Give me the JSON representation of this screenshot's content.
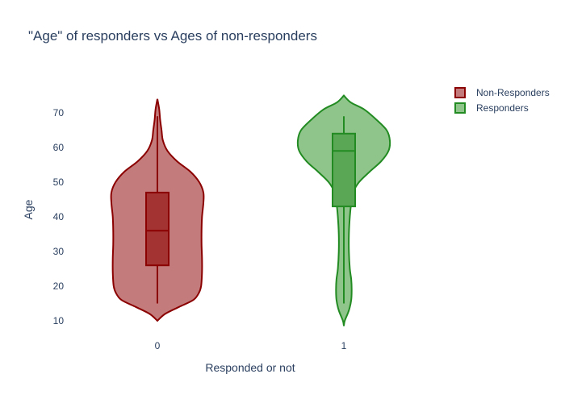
{
  "chart_data": {
    "type": "violin",
    "title": "\"Age\" of responders vs Ages of non-responders",
    "xlabel": "Responded or not",
    "ylabel": "Age",
    "categories": [
      "0",
      "1"
    ],
    "yticks": [
      10,
      20,
      30,
      40,
      50,
      60,
      70
    ],
    "ylim": [
      5,
      80
    ],
    "legend_position": "top-right",
    "series": [
      {
        "name": "Non-Responders",
        "category": "0",
        "line_color": "#8b0000",
        "fill_color": "#c47b7b",
        "box_color": "#a33333",
        "min": 10,
        "max": 74,
        "whisker_low": 15,
        "whisker_high": 69,
        "q1": 26,
        "median": 36,
        "q3": 47,
        "density": [
          {
            "age": 10,
            "w": 0.0
          },
          {
            "age": 12,
            "w": 0.17
          },
          {
            "age": 14,
            "w": 0.47
          },
          {
            "age": 16,
            "w": 0.78
          },
          {
            "age": 18,
            "w": 0.9
          },
          {
            "age": 20,
            "w": 0.95
          },
          {
            "age": 24,
            "w": 0.97
          },
          {
            "age": 28,
            "w": 0.97
          },
          {
            "age": 32,
            "w": 0.96
          },
          {
            "age": 36,
            "w": 0.96
          },
          {
            "age": 40,
            "w": 0.97
          },
          {
            "age": 44,
            "w": 1.0
          },
          {
            "age": 47,
            "w": 1.0
          },
          {
            "age": 50,
            "w": 0.91
          },
          {
            "age": 53,
            "w": 0.72
          },
          {
            "age": 56,
            "w": 0.43
          },
          {
            "age": 59,
            "w": 0.22
          },
          {
            "age": 62,
            "w": 0.12
          },
          {
            "age": 65,
            "w": 0.09
          },
          {
            "age": 68,
            "w": 0.06
          },
          {
            "age": 71,
            "w": 0.04
          },
          {
            "age": 74,
            "w": 0.0
          }
        ]
      },
      {
        "name": "Responders",
        "category": "1",
        "line_color": "#228b22",
        "fill_color": "#8fc48a",
        "box_color": "#5aa855",
        "min": 8.5,
        "max": 75,
        "whisker_low": 15,
        "whisker_high": 69,
        "q1": 43,
        "median": 59,
        "q3": 64,
        "density": [
          {
            "age": 8.5,
            "w": 0.0
          },
          {
            "age": 10,
            "w": 0.02
          },
          {
            "age": 13,
            "w": 0.11
          },
          {
            "age": 16,
            "w": 0.16
          },
          {
            "age": 19,
            "w": 0.17
          },
          {
            "age": 22,
            "w": 0.16
          },
          {
            "age": 25,
            "w": 0.13
          },
          {
            "age": 30,
            "w": 0.11
          },
          {
            "age": 35,
            "w": 0.11
          },
          {
            "age": 40,
            "w": 0.13
          },
          {
            "age": 44,
            "w": 0.16
          },
          {
            "age": 47,
            "w": 0.2
          },
          {
            "age": 50,
            "w": 0.33
          },
          {
            "age": 53,
            "w": 0.56
          },
          {
            "age": 56,
            "w": 0.81
          },
          {
            "age": 59,
            "w": 0.97
          },
          {
            "age": 62,
            "w": 1.0
          },
          {
            "age": 65,
            "w": 0.93
          },
          {
            "age": 68,
            "w": 0.71
          },
          {
            "age": 71,
            "w": 0.44
          },
          {
            "age": 73,
            "w": 0.15
          },
          {
            "age": 75,
            "w": 0.0
          }
        ]
      }
    ]
  }
}
